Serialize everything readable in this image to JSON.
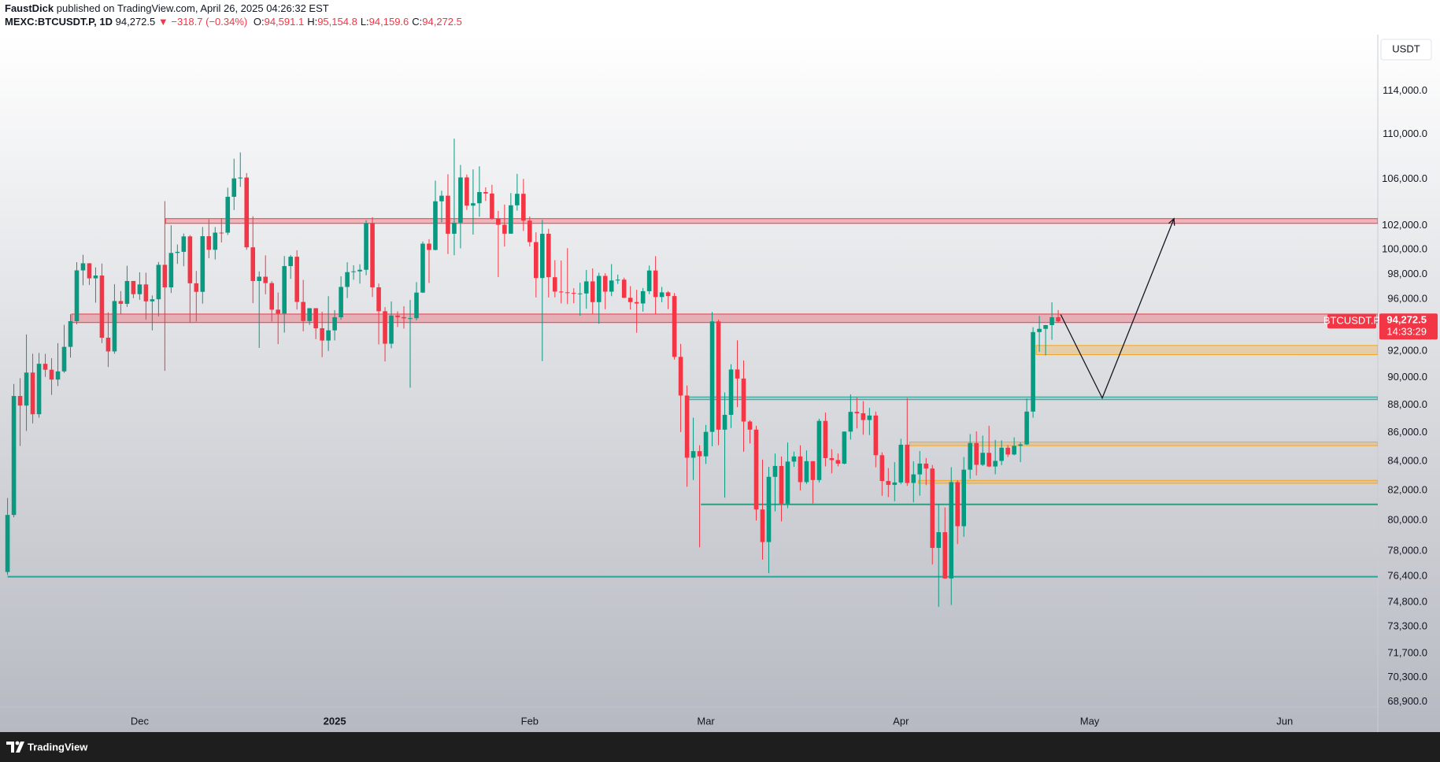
{
  "header": {
    "author": "FaustDick",
    "published": "published on TradingView.com, April 26, 2025 04:26:32 EST"
  },
  "logo": "TradingView",
  "chart_data": {
    "type": "candlestick",
    "symbol": "MEXC:BTCUSDT.P, 1D",
    "last": "94,272.5",
    "change_arrow": "▼",
    "change": "−318.7 (−0.34%)",
    "legend_fields": [
      {
        "label": "O:",
        "value": "94,591.1"
      },
      {
        "label": "H:",
        "value": "95,154.8"
      },
      {
        "label": "L:",
        "value": "94,159.6"
      },
      {
        "label": "C:",
        "value": "94,272.5"
      }
    ],
    "currency": "USDT",
    "price_tag": {
      "name": "BTCUSDT.P",
      "price": "94,272.5",
      "countdown": "14:33:29"
    },
    "up_color": "#089981",
    "down_color": "#f23645",
    "log_scale": true,
    "grid": false,
    "xlim": [
      -1.2,
      217.8
    ],
    "ylim": [
      67200,
      119400
    ],
    "xticks": [
      {
        "value": 21,
        "label": "Dec"
      },
      {
        "value": 52,
        "label": "2025"
      },
      {
        "value": 83,
        "label": "Feb"
      },
      {
        "value": 111,
        "label": "Mar"
      },
      {
        "value": 142,
        "label": "Apr"
      },
      {
        "value": 172,
        "label": "May"
      },
      {
        "value": 203,
        "label": "Jun"
      }
    ],
    "yticks": [
      {
        "value": 114000,
        "label": "114,000.0"
      },
      {
        "value": 110000,
        "label": "110,000.0"
      },
      {
        "value": 106000,
        "label": "106,000.0"
      },
      {
        "value": 102000,
        "label": "102,000.0"
      },
      {
        "value": 100000,
        "label": "100,000.0"
      },
      {
        "value": 98000,
        "label": "98,000.0"
      },
      {
        "value": 96000,
        "label": "96,000.0"
      },
      {
        "value": 92000,
        "label": "92,000.0"
      },
      {
        "value": 90000,
        "label": "90,000.0"
      },
      {
        "value": 88000,
        "label": "88,000.0"
      },
      {
        "value": 86000,
        "label": "86,000.0"
      },
      {
        "value": 84000,
        "label": "84,000.0"
      },
      {
        "value": 82000,
        "label": "82,000.0"
      },
      {
        "value": 80000,
        "label": "80,000.0"
      },
      {
        "value": 78000,
        "label": "78,000.0"
      },
      {
        "value": 76400,
        "label": "76,400.0"
      },
      {
        "value": 74800,
        "label": "74,800.0"
      },
      {
        "value": 73300,
        "label": "73,300.0"
      },
      {
        "value": 71700,
        "label": "71,700.0"
      },
      {
        "value": 70300,
        "label": "70,300.0"
      },
      {
        "value": 68900,
        "label": "68,900.0"
      }
    ],
    "zones": [
      {
        "low": 102200,
        "high": 102600,
        "start": 25.1,
        "color": "#f23645"
      },
      {
        "low": 94180,
        "high": 94840,
        "start": 10.2,
        "color": "#f23645"
      },
      {
        "low": 91720,
        "high": 92420,
        "start": 163.5,
        "color": "#f5a623"
      },
      {
        "low": 88380,
        "high": 88580,
        "start": 108.3,
        "color": "#26a69a"
      },
      {
        "low": 85090,
        "high": 85350,
        "start": 143.4,
        "color": "#f5a623"
      },
      {
        "low": 82490,
        "high": 82690,
        "start": 144.8,
        "color": "#f5a623"
      }
    ],
    "levels": [
      {
        "level": 81070,
        "start": 110.2,
        "color": "#2e9e82"
      },
      {
        "level": 76380,
        "start": 0,
        "color": "#26a69a"
      }
    ],
    "projection": {
      "x": [
        167.4,
        174,
        185.4
      ],
      "y": [
        94800,
        88500,
        102600
      ],
      "color": "#131722"
    },
    "ohlc": [
      [
        76677,
        81500,
        76490,
        80370
      ],
      [
        80370,
        89530,
        80216,
        88647
      ],
      [
        88647,
        89956,
        85072,
        87952
      ],
      [
        87952,
        93265,
        86127,
        90375
      ],
      [
        90375,
        91790,
        86668,
        87325
      ],
      [
        87325,
        91850,
        87073,
        91032
      ],
      [
        91032,
        91779,
        90056,
        90587
      ],
      [
        90587,
        91449,
        88723,
        89855
      ],
      [
        89855,
        92594,
        89376,
        90464
      ],
      [
        90464,
        94002,
        90357,
        92310
      ],
      [
        92310,
        94831,
        91500,
        94286
      ],
      [
        94286,
        98988,
        94040,
        98317
      ],
      [
        98317,
        99588,
        97122,
        98892
      ],
      [
        98892,
        98908,
        97136,
        97672
      ],
      [
        97672,
        98564,
        95734,
        97900
      ],
      [
        97900,
        98871,
        92600,
        93010
      ],
      [
        93010,
        94973,
        90791,
        91965
      ],
      [
        91965,
        97208,
        91792,
        95863
      ],
      [
        95863,
        96650,
        94827,
        95643
      ],
      [
        95643,
        98693,
        95407,
        97460
      ],
      [
        97460,
        97463,
        96092,
        96407
      ],
      [
        96407,
        98160,
        95960,
        97185
      ],
      [
        97185,
        98130,
        94395,
        95840
      ],
      [
        95840,
        96305,
        93578,
        96002
      ],
      [
        96002,
        99000,
        94659,
        98768
      ],
      [
        98768,
        104088,
        90500,
        96950
      ],
      [
        96950,
        102039,
        96500,
        99740
      ],
      [
        99740,
        100439,
        98844,
        99831
      ],
      [
        99831,
        101350,
        98657,
        101109
      ],
      [
        101109,
        101215,
        94150,
        97276
      ],
      [
        97276,
        98270,
        94256,
        96593
      ],
      [
        96593,
        101895,
        95658,
        101125
      ],
      [
        101125,
        102540,
        99311,
        100000
      ],
      [
        100000,
        101895,
        99205,
        101424
      ],
      [
        101424,
        102650,
        100609,
        101420
      ],
      [
        101420,
        105250,
        101227,
        104463
      ],
      [
        104463,
        107793,
        103333,
        106058
      ],
      [
        106058,
        108353,
        105321,
        106133
      ],
      [
        106133,
        106524,
        100000,
        100204
      ],
      [
        100204,
        102800,
        95700,
        97461
      ],
      [
        97461,
        98233,
        92232,
        97805
      ],
      [
        97805,
        99540,
        96398,
        97291
      ],
      [
        97291,
        97448,
        94250,
        95186
      ],
      [
        95186,
        96538,
        92520,
        94881
      ],
      [
        94881,
        99487,
        93400,
        98663
      ],
      [
        98663,
        99569,
        97632,
        99430
      ],
      [
        99430,
        99963,
        95200,
        95792
      ],
      [
        95792,
        97544,
        93500,
        94299
      ],
      [
        94299,
        95300,
        94000,
        95300
      ],
      [
        95300,
        95300,
        92900,
        93738
      ],
      [
        93738,
        95024,
        91530,
        92792
      ],
      [
        92792,
        96250,
        92000,
        93576
      ],
      [
        93576,
        95150,
        92800,
        94591
      ],
      [
        94591,
        97840,
        94400,
        96984
      ],
      [
        96984,
        98976,
        96100,
        98174
      ],
      [
        98174,
        98734,
        97562,
        98236
      ],
      [
        98236,
        98813,
        97250,
        98364
      ],
      [
        98364,
        102480,
        97923,
        102235
      ],
      [
        102235,
        102725,
        96181,
        96954
      ],
      [
        96954,
        97259,
        92500,
        95060
      ],
      [
        95060,
        95382,
        91203,
        92552
      ],
      [
        92552,
        95836,
        92206,
        94726
      ],
      [
        94726,
        95050,
        93831,
        94599
      ],
      [
        94599,
        95450,
        93712,
        94511
      ],
      [
        94511,
        95940,
        89256,
        94519
      ],
      [
        94519,
        97371,
        94346,
        96534
      ],
      [
        96534,
        100681,
        96500,
        100505
      ],
      [
        100505,
        100873,
        97300,
        99987
      ],
      [
        99987,
        105865,
        99950,
        104077
      ],
      [
        104077,
        104988,
        102277,
        104557
      ],
      [
        104557,
        106422,
        99651,
        101331
      ],
      [
        101331,
        109588,
        99550,
        102260
      ],
      [
        102260,
        107240,
        100119,
        106143
      ],
      [
        106143,
        106394,
        103339,
        103706
      ],
      [
        103706,
        106850,
        101262,
        103910
      ],
      [
        103910,
        107120,
        102750,
        104870
      ],
      [
        104870,
        105286,
        104106,
        104746
      ],
      [
        104746,
        105500,
        102520,
        102620
      ],
      [
        102620,
        103260,
        97777,
        102082
      ],
      [
        102082,
        103800,
        100272,
        101335
      ],
      [
        101335,
        104782,
        101328,
        103733
      ],
      [
        103733,
        106457,
        103278,
        104722
      ],
      [
        104722,
        106012,
        101560,
        102429
      ],
      [
        102429,
        102783,
        100279,
        100635
      ],
      [
        100635,
        101456,
        96150,
        97700
      ],
      [
        97700,
        102500,
        91231,
        101328
      ],
      [
        101328,
        101745,
        96150,
        97763
      ],
      [
        97763,
        99149,
        96155,
        96613
      ],
      [
        96613,
        99120,
        95676,
        96554
      ],
      [
        96554,
        100137,
        95620,
        96506
      ],
      [
        96506,
        96880,
        95688,
        96444
      ],
      [
        96444,
        97323,
        94713,
        96462
      ],
      [
        96462,
        98345,
        95256,
        97430
      ],
      [
        97430,
        98478,
        94876,
        95778
      ],
      [
        95778,
        98119,
        94088,
        97869
      ],
      [
        97869,
        98083,
        95217,
        96608
      ],
      [
        96608,
        98826,
        96252,
        97500
      ],
      [
        97500,
        97972,
        97223,
        97569
      ],
      [
        97569,
        97732,
        96101,
        96118
      ],
      [
        96118,
        97046,
        95205,
        95780
      ],
      [
        95780,
        96753,
        93388,
        95671
      ],
      [
        95671,
        96899,
        95029,
        96644
      ],
      [
        96644,
        98711,
        96415,
        98305
      ],
      [
        98305,
        99475,
        94871,
        96181
      ],
      [
        96181,
        96980,
        95770,
        96551
      ],
      [
        96551,
        96650,
        95227,
        96258
      ],
      [
        96258,
        96500,
        91349,
        91552
      ],
      [
        91552,
        92540,
        86050,
        88680
      ],
      [
        88680,
        89414,
        82256,
        84250
      ],
      [
        84250,
        87078,
        82716,
        84708
      ],
      [
        84708,
        85120,
        78258,
        84349
      ],
      [
        84349,
        86558,
        83824,
        86065
      ],
      [
        86065,
        95000,
        85050,
        94270
      ],
      [
        94270,
        94416,
        85117,
        86220
      ],
      [
        86220,
        88912,
        81529,
        87281
      ],
      [
        87281,
        91000,
        86335,
        90606
      ],
      [
        90606,
        92810,
        87836,
        89931
      ],
      [
        89931,
        91283,
        84667,
        86801
      ],
      [
        86801,
        86897,
        85248,
        86222
      ],
      [
        86222,
        86500,
        80000,
        80734
      ],
      [
        80734,
        84123,
        77459,
        78595
      ],
      [
        78595,
        83617,
        76606,
        82932
      ],
      [
        82932,
        84539,
        80607,
        83680
      ],
      [
        83680,
        84336,
        79939,
        81115
      ],
      [
        81115,
        85310,
        80820,
        83983
      ],
      [
        83983,
        84676,
        83618,
        84338
      ],
      [
        84338,
        85117,
        82017,
        82574
      ],
      [
        82574,
        84756,
        82456,
        84010
      ],
      [
        84010,
        84021,
        81134,
        82715
      ],
      [
        82715,
        87000,
        82547,
        86845
      ],
      [
        86845,
        87443,
        83647,
        84223
      ],
      [
        84223,
        84850,
        83175,
        84088
      ],
      [
        84088,
        84539,
        83646,
        83840
      ],
      [
        83840,
        86100,
        83790,
        86082
      ],
      [
        86082,
        88765,
        85519,
        87498
      ],
      [
        87498,
        88539,
        86310,
        87392
      ],
      [
        87392,
        88275,
        85860,
        86909
      ],
      [
        86909,
        87786,
        85837,
        87232
      ],
      [
        87232,
        87515,
        83585,
        84424
      ],
      [
        84424,
        84624,
        81644,
        82648
      ],
      [
        82648,
        83534,
        81565,
        82389
      ],
      [
        82389,
        83943,
        81279,
        82550
      ],
      [
        82550,
        85579,
        82432,
        85159
      ],
      [
        85159,
        88500,
        82320,
        82516
      ],
      [
        82516,
        83998,
        81211,
        83102
      ],
      [
        83102,
        84720,
        81659,
        83844
      ],
      [
        83844,
        84230,
        82368,
        83504
      ],
      [
        83504,
        83749,
        77153,
        78214
      ],
      [
        78214,
        81119,
        74508,
        79235
      ],
      [
        79235,
        80867,
        76239,
        76272
      ],
      [
        76272,
        83588,
        74620,
        82573
      ],
      [
        82573,
        82700,
        78456,
        79627
      ],
      [
        79627,
        84300,
        78936,
        83424
      ],
      [
        83424,
        85905,
        82792,
        85277
      ],
      [
        85277,
        86100,
        83034,
        83760
      ],
      [
        83760,
        85800,
        83678,
        84592
      ],
      [
        84592,
        86496,
        83600,
        83643
      ],
      [
        83643,
        85500,
        83111,
        84031
      ],
      [
        84031,
        85470,
        83736,
        84947
      ],
      [
        84947,
        85132,
        84303,
        84474
      ],
      [
        84474,
        85677,
        84418,
        85077
      ],
      [
        85077,
        85320,
        83949,
        85179
      ],
      [
        85179,
        88460,
        85143,
        87516
      ],
      [
        87516,
        93817,
        87076,
        93442
      ],
      [
        93442,
        94696,
        91935,
        93691
      ],
      [
        93691,
        94000,
        91660,
        93980
      ],
      [
        93980,
        95758,
        92855,
        94591
      ],
      [
        94591.1,
        95154.8,
        94159.6,
        94272.5
      ]
    ]
  }
}
